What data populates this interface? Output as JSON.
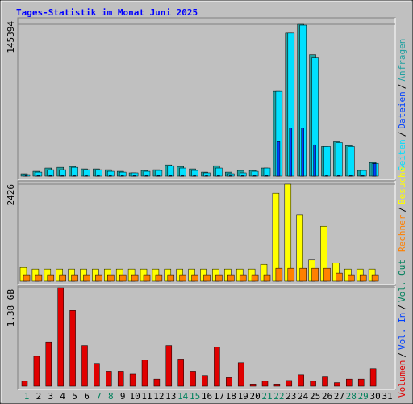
{
  "chart_data": [
    {
      "type": "bar",
      "title": "Tages-Statistik im Monat Juni 2025",
      "ylim": [
        0,
        145394
      ],
      "yticks": [
        145394
      ],
      "legend_separator": "/",
      "series": [
        {
          "name": "Anfragen",
          "color": "#20a0a0",
          "values": [
            2300,
            4600,
            7700,
            8400,
            9200,
            6900,
            6900,
            6100,
            4600,
            3100,
            5400,
            6100,
            10700,
            9200,
            6900,
            3800,
            9900,
            3800,
            5400,
            5400,
            7700,
            81100,
            137000,
            145394,
            116300,
            28300,
            32900,
            29100,
            5400,
            13000,
            0
          ]
        },
        {
          "name": "Seiten",
          "color": "#00e0ff",
          "values": [
            1500,
            3800,
            6100,
            6100,
            8400,
            6100,
            6100,
            4600,
            3800,
            3100,
            4600,
            5400,
            9900,
            7700,
            5400,
            3100,
            7700,
            2300,
            3100,
            4600,
            7700,
            81100,
            137000,
            144600,
            113200,
            28300,
            32100,
            28300,
            5400,
            12200,
            0
          ]
        },
        {
          "name": "Dateien",
          "color": "#0040ff",
          "values": [
            500,
            500,
            500,
            500,
            500,
            500,
            500,
            500,
            500,
            500,
            500,
            500,
            500,
            500,
            500,
            500,
            500,
            500,
            500,
            500,
            500,
            33000,
            46000,
            46000,
            30000,
            500,
            500,
            500,
            500,
            12000,
            0
          ]
        }
      ]
    },
    {
      "type": "bar",
      "ylim": [
        0,
        2426
      ],
      "yticks": [
        2426
      ],
      "legend_separator": "/",
      "series": [
        {
          "name": "Besuche",
          "color": "#ffff00",
          "values": [
            340,
            300,
            300,
            300,
            300,
            300,
            300,
            300,
            300,
            300,
            300,
            300,
            300,
            300,
            300,
            300,
            300,
            300,
            300,
            300,
            420,
            2200,
            2426,
            1660,
            530,
            1370,
            460,
            300,
            300,
            300,
            0
          ]
        },
        {
          "name": "Rechner",
          "color": "#ff8000",
          "values": [
            160,
            160,
            160,
            160,
            160,
            160,
            160,
            160,
            160,
            160,
            160,
            160,
            160,
            160,
            160,
            160,
            160,
            160,
            160,
            160,
            160,
            320,
            320,
            320,
            320,
            320,
            200,
            160,
            160,
            160,
            0
          ]
        }
      ]
    },
    {
      "type": "bar",
      "ylim": [
        0,
        1.38
      ],
      "yticks": [
        {
          "value": 1.38,
          "label": "1.38 GB"
        }
      ],
      "legend_separator": "/",
      "categories": [
        "1",
        "2",
        "3",
        "4",
        "5",
        "6",
        "7",
        "8",
        "9",
        "10",
        "11",
        "12",
        "13",
        "14",
        "15",
        "16",
        "17",
        "18",
        "19",
        "20",
        "21",
        "22",
        "23",
        "24",
        "25",
        "26",
        "27",
        "28",
        "29",
        "30",
        "31"
      ],
      "highlight": [
        0,
        6,
        7,
        13,
        14,
        20,
        21,
        27,
        28
      ],
      "highlight_color": "#00805c",
      "series": [
        {
          "name": "Volumen",
          "color": "#e00000",
          "values": [
            0.07,
            0.42,
            0.62,
            1.38,
            1.06,
            0.57,
            0.32,
            0.21,
            0.21,
            0.17,
            0.37,
            0.1,
            0.57,
            0.38,
            0.21,
            0.15,
            0.55,
            0.12,
            0.33,
            0.03,
            0.07,
            0.03,
            0.08,
            0.16,
            0.07,
            0.14,
            0.05,
            0.1,
            0.1,
            0.24,
            0
          ]
        },
        {
          "name": "Vol. In",
          "color": "#0040ff",
          "values": [
            null,
            null,
            null,
            null,
            null,
            null,
            null,
            null,
            null,
            null,
            null,
            null,
            null,
            null,
            null,
            null,
            null,
            null,
            null,
            null,
            null,
            null,
            null,
            null,
            null,
            null,
            null,
            null,
            null,
            null,
            null
          ]
        },
        {
          "name": "Vol. Out",
          "color": "#00805c",
          "values": [
            null,
            null,
            null,
            null,
            null,
            null,
            null,
            null,
            null,
            null,
            null,
            null,
            null,
            null,
            null,
            null,
            null,
            null,
            null,
            null,
            null,
            null,
            null,
            null,
            null,
            null,
            null,
            null,
            null,
            null,
            null
          ]
        }
      ]
    }
  ]
}
